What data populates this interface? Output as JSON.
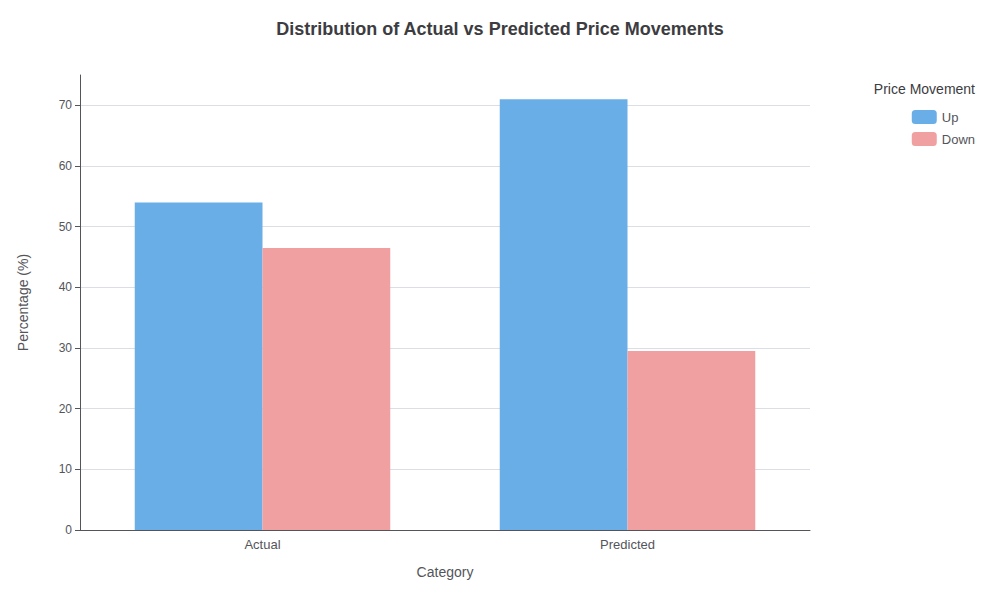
{
  "chart_data": {
    "type": "bar",
    "title": "Distribution of Actual vs Predicted Price Movements",
    "xlabel": "Category",
    "ylabel": "Percentage (%)",
    "legend_title": "Price Movement",
    "categories": [
      "Actual",
      "Predicted"
    ],
    "series": [
      {
        "name": "Up",
        "color": "#6aaee8",
        "values": [
          54.0,
          71.0
        ]
      },
      {
        "name": "Down",
        "color": "#f0a0a0",
        "values": [
          46.5,
          29.5
        ]
      }
    ],
    "ylim": [
      0,
      75
    ],
    "yticks": [
      0,
      10,
      20,
      30,
      40,
      50,
      60,
      70
    ],
    "grid": true,
    "legend": "upper right"
  }
}
